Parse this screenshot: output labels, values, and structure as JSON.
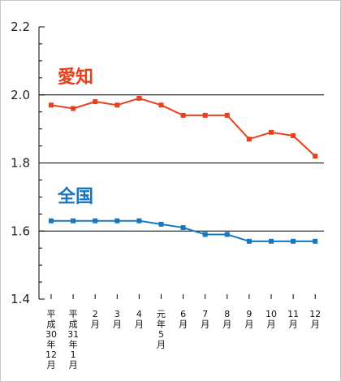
{
  "chart_data": {
    "type": "line",
    "categories": [
      [
        "平",
        "成",
        "30",
        "年",
        "12",
        "月"
      ],
      [
        "平",
        "成",
        "31",
        "年",
        "1",
        "月"
      ],
      [
        "2",
        "月"
      ],
      [
        "3",
        "月"
      ],
      [
        "4",
        "月"
      ],
      [
        "元",
        "年",
        "5",
        "月"
      ],
      [
        "6",
        "月"
      ],
      [
        "7",
        "月"
      ],
      [
        "8",
        "月"
      ],
      [
        "9",
        "月"
      ],
      [
        "10",
        "月"
      ],
      [
        "11",
        "月"
      ],
      [
        "12",
        "月"
      ]
    ],
    "ylim": [
      1.4,
      2.2
    ],
    "yticks": [
      "1.4",
      "1.6",
      "1.8",
      "2.0",
      "2.2"
    ],
    "gridlines": [
      1.6,
      1.8,
      2.0
    ],
    "series": [
      {
        "name": "愛知",
        "color": "#e8401c",
        "values": [
          1.97,
          1.96,
          1.98,
          1.97,
          1.99,
          1.97,
          1.94,
          1.94,
          1.94,
          1.87,
          1.89,
          1.88,
          1.82
        ]
      },
      {
        "name": "全国",
        "color": "#1676be",
        "values": [
          1.63,
          1.63,
          1.63,
          1.63,
          1.63,
          1.62,
          1.61,
          1.59,
          1.59,
          1.57,
          1.57,
          1.57,
          1.57
        ]
      }
    ]
  }
}
